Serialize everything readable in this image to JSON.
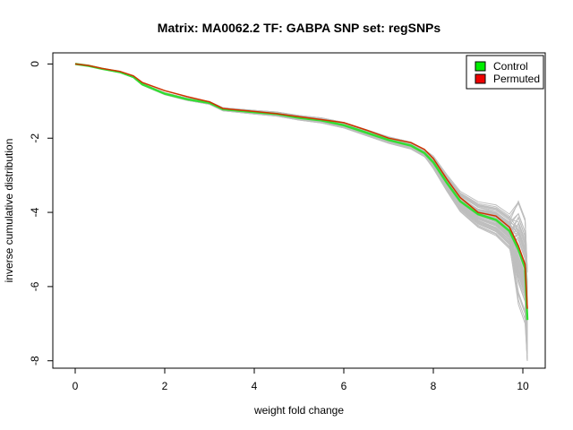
{
  "chart_data": {
    "type": "line",
    "title": "Matrix: MA0062.2 TF: GABPA SNP set: regSNPs",
    "xlabel": "weight fold change",
    "ylabel": "inverse cumulative distribution",
    "xlim": [
      -0.5,
      10.5
    ],
    "ylim": [
      -8.2,
      0.3
    ],
    "x_ticks": [
      "0",
      "2",
      "4",
      "6",
      "8",
      "10"
    ],
    "y_ticks": [
      "0",
      "-2",
      "-4",
      "-6",
      "-8"
    ],
    "x_tick_values": [
      0,
      2,
      4,
      6,
      8,
      10
    ],
    "y_tick_values": [
      0,
      -2,
      -4,
      -6,
      -8
    ],
    "grid": false,
    "legend_position": "top-right",
    "legend": [
      {
        "name": "Control",
        "color": "#00ee00"
      },
      {
        "name": "Permuted",
        "color": "#ee0000"
      }
    ],
    "background_series_color": "#bebebe",
    "background_series_count": 60,
    "series": [
      {
        "name": "Control",
        "color": "#33dd33",
        "x": [
          0,
          0.3,
          0.6,
          1.0,
          1.3,
          1.5,
          2.0,
          2.5,
          3.0,
          3.3,
          4.0,
          4.5,
          5.0,
          5.5,
          6.0,
          6.5,
          7.0,
          7.5,
          7.8,
          8.0,
          8.3,
          8.6,
          9.0,
          9.4,
          9.7,
          9.9,
          10.05,
          10.1
        ],
        "y": [
          0,
          -0.05,
          -0.13,
          -0.22,
          -0.35,
          -0.55,
          -0.8,
          -0.95,
          -1.05,
          -1.22,
          -1.3,
          -1.35,
          -1.45,
          -1.52,
          -1.65,
          -1.85,
          -2.05,
          -2.2,
          -2.4,
          -2.65,
          -3.2,
          -3.7,
          -4.05,
          -4.2,
          -4.5,
          -5.0,
          -5.5,
          -6.9
        ]
      },
      {
        "name": "Permuted",
        "color": "#cc3300",
        "x": [
          0,
          0.3,
          0.6,
          1.0,
          1.3,
          1.5,
          2.0,
          2.5,
          3.0,
          3.3,
          4.0,
          4.5,
          5.0,
          5.5,
          6.0,
          6.5,
          7.0,
          7.5,
          7.8,
          8.0,
          8.3,
          8.6,
          9.0,
          9.4,
          9.7,
          9.9,
          10.05,
          10.1
        ],
        "y": [
          0,
          -0.04,
          -0.12,
          -0.2,
          -0.32,
          -0.5,
          -0.72,
          -0.88,
          -1.02,
          -1.2,
          -1.28,
          -1.34,
          -1.42,
          -1.5,
          -1.58,
          -1.78,
          -2.0,
          -2.12,
          -2.3,
          -2.55,
          -3.1,
          -3.6,
          -4.0,
          -4.1,
          -4.4,
          -4.9,
          -5.4,
          -6.6
        ]
      }
    ]
  }
}
